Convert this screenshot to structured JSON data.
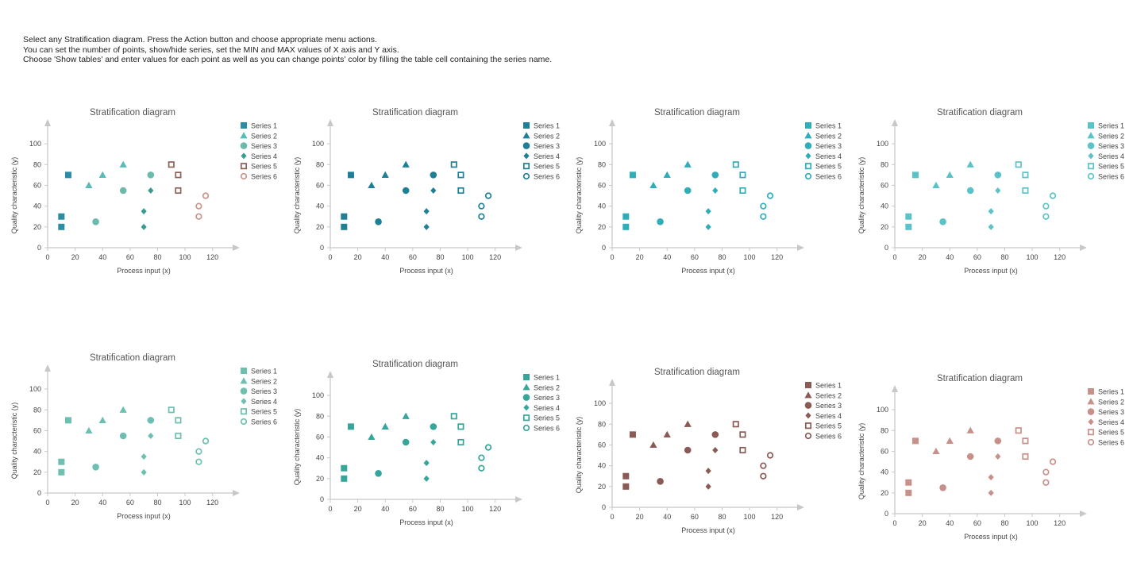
{
  "instructions": [
    "Select any Stratification diagram. Press the Action button and choose appropriate menu actions.",
    "You can set the number of points, show/hide series, set the MIN and MAX values of X axis and Y axis.",
    "Choose 'Show tables' and enter values for each point as well as you can change points' color by filling the table cell containing the series name."
  ],
  "chart_data": [
    {
      "type": "scatter",
      "title": "Stratification diagram",
      "xlabel": "Process input (x)",
      "ylabel": "Quality characteristic (y)",
      "xlim": [
        0,
        130
      ],
      "ylim": [
        0,
        110
      ],
      "xticks": [
        0,
        20,
        40,
        60,
        80,
        100,
        120
      ],
      "yticks": [
        0,
        20,
        40,
        60,
        80,
        100
      ],
      "legend": "right",
      "series": [
        {
          "name": "Series 1",
          "marker": "square",
          "color": "#2b8da3",
          "x": [
            10,
            10,
            15
          ],
          "y": [
            20,
            30,
            70
          ]
        },
        {
          "name": "Series 2",
          "marker": "triangle",
          "color": "#56bcb8",
          "x": [
            30,
            40,
            55
          ],
          "y": [
            60,
            70,
            80
          ]
        },
        {
          "name": "Series 3",
          "marker": "circle",
          "color": "#6cb9ad",
          "x": [
            35,
            55,
            75
          ],
          "y": [
            25,
            55,
            70
          ]
        },
        {
          "name": "Series 4",
          "marker": "diamond",
          "color": "#3a9b8f",
          "x": [
            70,
            70,
            75
          ],
          "y": [
            20,
            35,
            55
          ]
        },
        {
          "name": "Series 5",
          "marker": "hollow-square",
          "color": "#8e6057",
          "x": [
            90,
            95,
            95
          ],
          "y": [
            80,
            70,
            55
          ]
        },
        {
          "name": "Series 6",
          "marker": "hollow-circle",
          "color": "#c9948d",
          "x": [
            110,
            110,
            115
          ],
          "y": [
            30,
            40,
            50
          ]
        }
      ]
    },
    {
      "type": "scatter",
      "title": "Stratification diagram",
      "xlabel": "Process input (x)",
      "ylabel": "Quality characteristic (y)",
      "xlim": [
        0,
        130
      ],
      "ylim": [
        0,
        110
      ],
      "xticks": [
        0,
        20,
        40,
        60,
        80,
        100,
        120
      ],
      "yticks": [
        0,
        20,
        40,
        60,
        80,
        100
      ],
      "legend": "right",
      "series": [
        {
          "name": "Series 1",
          "marker": "square",
          "color": "#1f7f97",
          "x": [
            10,
            10,
            15
          ],
          "y": [
            20,
            30,
            70
          ]
        },
        {
          "name": "Series 2",
          "marker": "triangle",
          "color": "#1f7f97",
          "x": [
            30,
            40,
            55
          ],
          "y": [
            60,
            70,
            80
          ]
        },
        {
          "name": "Series 3",
          "marker": "circle",
          "color": "#1f7f97",
          "x": [
            35,
            55,
            75
          ],
          "y": [
            25,
            55,
            70
          ]
        },
        {
          "name": "Series 4",
          "marker": "diamond",
          "color": "#1f7f97",
          "x": [
            70,
            70,
            75
          ],
          "y": [
            20,
            35,
            55
          ]
        },
        {
          "name": "Series 5",
          "marker": "hollow-square",
          "color": "#1f7f97",
          "x": [
            90,
            95,
            95
          ],
          "y": [
            80,
            70,
            55
          ]
        },
        {
          "name": "Series 6",
          "marker": "hollow-circle",
          "color": "#1f7f97",
          "x": [
            110,
            110,
            115
          ],
          "y": [
            30,
            40,
            50
          ]
        }
      ]
    },
    {
      "type": "scatter",
      "title": "Stratification diagram",
      "xlabel": "Process input (x)",
      "ylabel": "Quality characteristic (y)",
      "xlim": [
        0,
        130
      ],
      "ylim": [
        0,
        110
      ],
      "xticks": [
        0,
        20,
        40,
        60,
        80,
        100,
        120
      ],
      "yticks": [
        0,
        20,
        40,
        60,
        80,
        100
      ],
      "legend": "right",
      "series": [
        {
          "name": "Series 1",
          "marker": "square",
          "color": "#2fadb9",
          "x": [
            10,
            10,
            15
          ],
          "y": [
            20,
            30,
            70
          ]
        },
        {
          "name": "Series 2",
          "marker": "triangle",
          "color": "#2fadb9",
          "x": [
            30,
            40,
            55
          ],
          "y": [
            60,
            70,
            80
          ]
        },
        {
          "name": "Series 3",
          "marker": "circle",
          "color": "#2fadb9",
          "x": [
            35,
            55,
            75
          ],
          "y": [
            25,
            55,
            70
          ]
        },
        {
          "name": "Series 4",
          "marker": "diamond",
          "color": "#2fadb9",
          "x": [
            70,
            70,
            75
          ],
          "y": [
            20,
            35,
            55
          ]
        },
        {
          "name": "Series 5",
          "marker": "hollow-square",
          "color": "#2fadb9",
          "x": [
            90,
            95,
            95
          ],
          "y": [
            80,
            70,
            55
          ]
        },
        {
          "name": "Series 6",
          "marker": "hollow-circle",
          "color": "#2fadb9",
          "x": [
            110,
            110,
            115
          ],
          "y": [
            30,
            40,
            50
          ]
        }
      ]
    },
    {
      "type": "scatter",
      "title": "Stratification diagram",
      "xlabel": "Process input (x)",
      "ylabel": "Quality characteristic (y)",
      "xlim": [
        0,
        130
      ],
      "ylim": [
        0,
        110
      ],
      "xticks": [
        0,
        20,
        40,
        60,
        80,
        100,
        120
      ],
      "yticks": [
        0,
        20,
        40,
        60,
        80,
        100
      ],
      "legend": "right",
      "series": [
        {
          "name": "Series 1",
          "marker": "square",
          "color": "#5bc3c8",
          "x": [
            10,
            10,
            15
          ],
          "y": [
            20,
            30,
            70
          ]
        },
        {
          "name": "Series 2",
          "marker": "triangle",
          "color": "#5bc3c8",
          "x": [
            30,
            40,
            55
          ],
          "y": [
            60,
            70,
            80
          ]
        },
        {
          "name": "Series 3",
          "marker": "circle",
          "color": "#5bc3c8",
          "x": [
            35,
            55,
            75
          ],
          "y": [
            25,
            55,
            70
          ]
        },
        {
          "name": "Series 4",
          "marker": "diamond",
          "color": "#5bc3c8",
          "x": [
            70,
            70,
            75
          ],
          "y": [
            20,
            35,
            55
          ]
        },
        {
          "name": "Series 5",
          "marker": "hollow-square",
          "color": "#5bc3c8",
          "x": [
            90,
            95,
            95
          ],
          "y": [
            80,
            70,
            55
          ]
        },
        {
          "name": "Series 6",
          "marker": "hollow-circle",
          "color": "#5bc3c8",
          "x": [
            110,
            110,
            115
          ],
          "y": [
            30,
            40,
            50
          ]
        }
      ]
    },
    {
      "type": "scatter",
      "title": "Stratification diagram",
      "xlabel": "Process input (x)",
      "ylabel": "Quality characteristic (y)",
      "xlim": [
        0,
        130
      ],
      "ylim": [
        0,
        110
      ],
      "xticks": [
        0,
        20,
        40,
        60,
        80,
        100,
        120
      ],
      "yticks": [
        0,
        20,
        40,
        60,
        80,
        100
      ],
      "legend": "right",
      "series": [
        {
          "name": "Series 1",
          "marker": "square",
          "color": "#6dbfb2",
          "x": [
            10,
            10,
            15
          ],
          "y": [
            20,
            30,
            70
          ]
        },
        {
          "name": "Series 2",
          "marker": "triangle",
          "color": "#6dbfb2",
          "x": [
            30,
            40,
            55
          ],
          "y": [
            60,
            70,
            80
          ]
        },
        {
          "name": "Series 3",
          "marker": "circle",
          "color": "#6dbfb2",
          "x": [
            35,
            55,
            75
          ],
          "y": [
            25,
            55,
            70
          ]
        },
        {
          "name": "Series 4",
          "marker": "diamond",
          "color": "#6dbfb2",
          "x": [
            70,
            70,
            75
          ],
          "y": [
            20,
            35,
            55
          ]
        },
        {
          "name": "Series 5",
          "marker": "hollow-square",
          "color": "#6dbfb2",
          "x": [
            90,
            95,
            95
          ],
          "y": [
            80,
            70,
            55
          ]
        },
        {
          "name": "Series 6",
          "marker": "hollow-circle",
          "color": "#6dbfb2",
          "x": [
            110,
            110,
            115
          ],
          "y": [
            30,
            40,
            50
          ]
        }
      ]
    },
    {
      "type": "scatter",
      "title": "Stratification diagram",
      "xlabel": "Process input (x)",
      "ylabel": "Quality characteristic (y)",
      "xlim": [
        0,
        130
      ],
      "ylim": [
        0,
        110
      ],
      "xticks": [
        0,
        20,
        40,
        60,
        80,
        100,
        120
      ],
      "yticks": [
        0,
        20,
        40,
        60,
        80,
        100
      ],
      "legend": "right",
      "series": [
        {
          "name": "Series 1",
          "marker": "square",
          "color": "#35a699",
          "x": [
            10,
            10,
            15
          ],
          "y": [
            20,
            30,
            70
          ]
        },
        {
          "name": "Series 2",
          "marker": "triangle",
          "color": "#35a699",
          "x": [
            30,
            40,
            55
          ],
          "y": [
            60,
            70,
            80
          ]
        },
        {
          "name": "Series 3",
          "marker": "circle",
          "color": "#35a699",
          "x": [
            35,
            55,
            75
          ],
          "y": [
            25,
            55,
            70
          ]
        },
        {
          "name": "Series 4",
          "marker": "diamond",
          "color": "#35a699",
          "x": [
            70,
            70,
            75
          ],
          "y": [
            20,
            35,
            55
          ]
        },
        {
          "name": "Series 5",
          "marker": "hollow-square",
          "color": "#35a699",
          "x": [
            90,
            95,
            95
          ],
          "y": [
            80,
            70,
            55
          ]
        },
        {
          "name": "Series 6",
          "marker": "hollow-circle",
          "color": "#35a699",
          "x": [
            110,
            110,
            115
          ],
          "y": [
            30,
            40,
            50
          ]
        }
      ]
    },
    {
      "type": "scatter",
      "title": "Stratification diagram",
      "xlabel": "Process input (x)",
      "ylabel": "Quality characteristic (y)",
      "xlim": [
        0,
        130
      ],
      "ylim": [
        0,
        110
      ],
      "xticks": [
        0,
        20,
        40,
        60,
        80,
        100,
        120
      ],
      "yticks": [
        0,
        20,
        40,
        60,
        80,
        100
      ],
      "legend": "right",
      "series": [
        {
          "name": "Series 1",
          "marker": "square",
          "color": "#8a5a55",
          "x": [
            10,
            10,
            15
          ],
          "y": [
            20,
            30,
            70
          ]
        },
        {
          "name": "Series 2",
          "marker": "triangle",
          "color": "#8a5a55",
          "x": [
            30,
            40,
            55
          ],
          "y": [
            60,
            70,
            80
          ]
        },
        {
          "name": "Series 3",
          "marker": "circle",
          "color": "#8a5a55",
          "x": [
            35,
            55,
            75
          ],
          "y": [
            25,
            55,
            70
          ]
        },
        {
          "name": "Series 4",
          "marker": "diamond",
          "color": "#8a5a55",
          "x": [
            70,
            70,
            75
          ],
          "y": [
            20,
            35,
            55
          ]
        },
        {
          "name": "Series 5",
          "marker": "hollow-square",
          "color": "#8a5a55",
          "x": [
            90,
            95,
            95
          ],
          "y": [
            80,
            70,
            55
          ]
        },
        {
          "name": "Series 6",
          "marker": "hollow-circle",
          "color": "#8a5a55",
          "x": [
            110,
            110,
            115
          ],
          "y": [
            30,
            40,
            50
          ]
        }
      ]
    },
    {
      "type": "scatter",
      "title": "Stratification diagram",
      "xlabel": "Process input (x)",
      "ylabel": "Quality characteristic (y)",
      "xlim": [
        0,
        130
      ],
      "ylim": [
        0,
        110
      ],
      "xticks": [
        0,
        20,
        40,
        60,
        80,
        100,
        120
      ],
      "yticks": [
        0,
        20,
        40,
        60,
        80,
        100
      ],
      "legend": "right",
      "series": [
        {
          "name": "Series 1",
          "marker": "square",
          "color": "#c8908a",
          "x": [
            10,
            10,
            15
          ],
          "y": [
            20,
            30,
            70
          ]
        },
        {
          "name": "Series 2",
          "marker": "triangle",
          "color": "#c8908a",
          "x": [
            30,
            40,
            55
          ],
          "y": [
            60,
            70,
            80
          ]
        },
        {
          "name": "Series 3",
          "marker": "circle",
          "color": "#c8908a",
          "x": [
            35,
            55,
            75
          ],
          "y": [
            25,
            55,
            70
          ]
        },
        {
          "name": "Series 4",
          "marker": "diamond",
          "color": "#c8908a",
          "x": [
            70,
            70,
            75
          ],
          "y": [
            20,
            35,
            55
          ]
        },
        {
          "name": "Series 5",
          "marker": "hollow-square",
          "color": "#c8908a",
          "x": [
            90,
            95,
            95
          ],
          "y": [
            80,
            70,
            55
          ]
        },
        {
          "name": "Series 6",
          "marker": "hollow-circle",
          "color": "#c8908a",
          "x": [
            110,
            110,
            115
          ],
          "y": [
            30,
            40,
            50
          ]
        }
      ]
    }
  ]
}
